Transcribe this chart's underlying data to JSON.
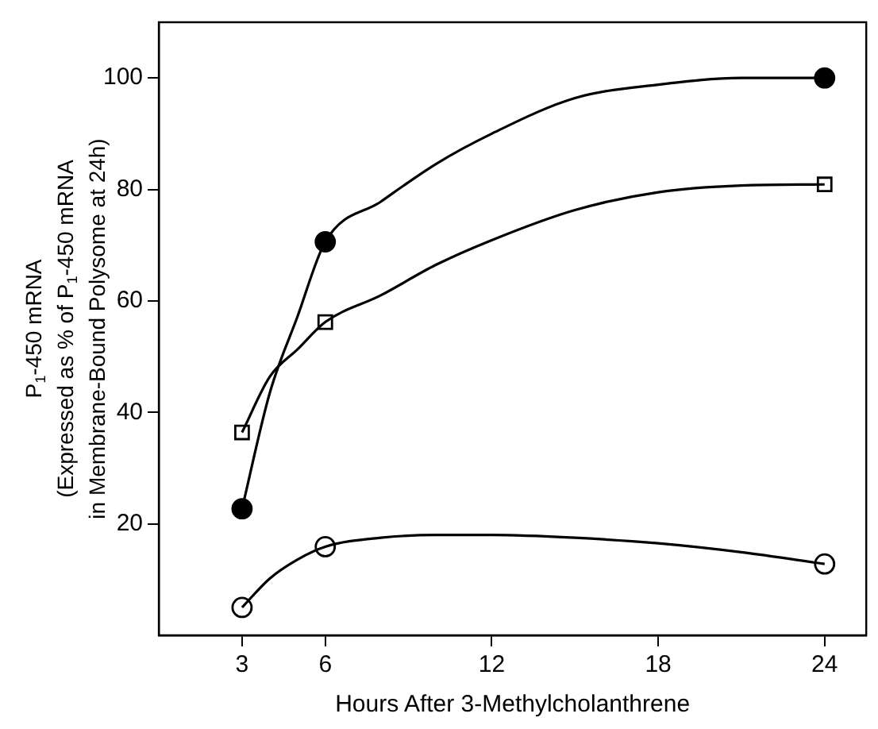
{
  "chart_data": {
    "type": "scatter",
    "xlabel": "Hours After 3-Methylcholanthrene",
    "ylabel": "P$_{1}$-450 mRNA\n(Expressed as % of P$_{1}$-450 mRNA\nin Membrane-Bound Polysome at 24h)",
    "xlim": [
      0,
      25.5
    ],
    "xticks": [
      3,
      6,
      12,
      18,
      24
    ],
    "ylim": [
      0,
      110
    ],
    "yticks": [
      20,
      40,
      60,
      80,
      100
    ],
    "grid": false,
    "legend": false,
    "series": [
      {
        "type": "line",
        "marker": "none",
        "color": "#000000",
        "x": [
          3,
          4,
          5,
          6,
          8,
          10,
          12,
          15,
          18,
          21,
          24
        ],
        "values": [
          22.7,
          43.5,
          57.2,
          70.6,
          77.8,
          84.6,
          90,
          96.4,
          98.8,
          100,
          100
        ]
      },
      {
        "type": "line",
        "marker": "none",
        "color": "#000000",
        "x": [
          3,
          4,
          5,
          6,
          8,
          10,
          12,
          15,
          18,
          21,
          24
        ],
        "values": [
          36.4,
          46.4,
          51.3,
          56.2,
          61,
          66.5,
          70.9,
          76.3,
          79.5,
          80.7,
          80.9
        ]
      },
      {
        "type": "line",
        "marker": "none",
        "color": "#000000",
        "x": [
          3,
          4,
          5,
          6,
          8,
          10,
          12,
          15,
          18,
          21,
          24
        ],
        "values": [
          5,
          10.2,
          13.6,
          15.9,
          17.5,
          18,
          18,
          17.5,
          16.5,
          14.9,
          12.8
        ]
      },
      {
        "type": "scatter",
        "marker": "circle",
        "color": "#000000",
        "x": [
          3,
          6,
          24
        ],
        "values": [
          22.7,
          70.6,
          100
        ]
      },
      {
        "type": "scatter",
        "marker": "square",
        "color": "#ffffff",
        "x": [
          3,
          6,
          24
        ],
        "values": [
          36.4,
          56.2,
          80.9
        ]
      },
      {
        "type": "scatter",
        "marker": "circle",
        "color": "#ffffff",
        "x": [
          3,
          6,
          24
        ],
        "values": [
          5,
          15.9,
          12.8
        ]
      }
    ]
  }
}
